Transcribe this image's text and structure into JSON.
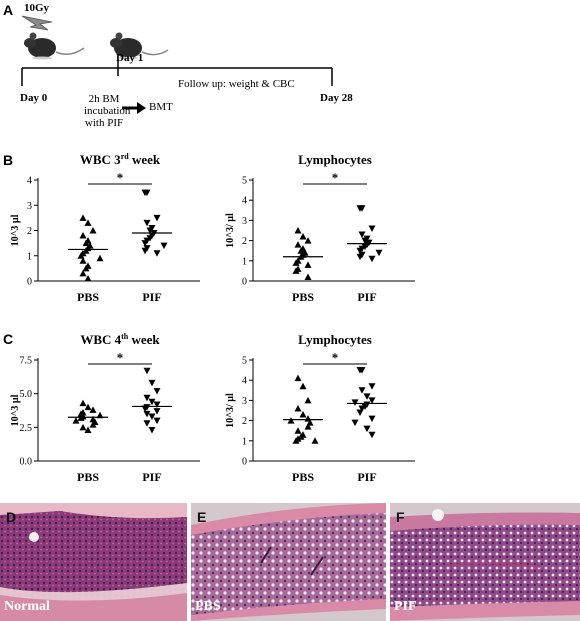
{
  "panels": {
    "A": "A",
    "B": "B",
    "C": "C",
    "D": "D",
    "E": "E",
    "F": "F"
  },
  "timeline": {
    "dose": "10Gy",
    "day0": "Day 0",
    "day1": "Day 1",
    "day28": "Day 28",
    "followup": "Follow up:  weight & CBC",
    "incubation_line1": "2h BM",
    "incubation_line2": "incubation",
    "incubation_line3": "with PIF",
    "bmt": "BMT"
  },
  "histology": {
    "normal": "Normal",
    "pbs": "PBS",
    "pif": "PIF"
  },
  "chart_data": [
    {
      "id": "B-left",
      "type": "scatter",
      "title": "WBC 3rd week",
      "ylabel": "10^3 µl",
      "categories": [
        "PBS",
        "PIF"
      ],
      "ylim": [
        0,
        4
      ],
      "yticks": [
        "0",
        "1",
        "2",
        "3",
        "4"
      ],
      "significance": "*",
      "series": [
        {
          "values": [
            2.5,
            2.3,
            2.0,
            1.8,
            1.6,
            1.5,
            1.4,
            1.3,
            1.2,
            1.1,
            1.0,
            0.9,
            0.8,
            0.6,
            0.5,
            0.3,
            0.1
          ],
          "mean": 1.25
        },
        {
          "values": [
            3.5,
            3.5,
            2.5,
            2.3,
            2.1,
            2.0,
            1.9,
            1.8,
            1.7,
            1.6,
            1.5,
            1.4,
            1.3,
            1.2,
            1.1
          ],
          "mean": 1.9
        }
      ]
    },
    {
      "id": "B-right",
      "type": "scatter",
      "title": "Lymphocytes",
      "ylabel": "10^3/ µl",
      "categories": [
        "PBS",
        "PIF"
      ],
      "ylim": [
        0,
        5
      ],
      "yticks": [
        "0",
        "1",
        "2",
        "3",
        "4",
        "5"
      ],
      "significance": "*",
      "series": [
        {
          "values": [
            2.5,
            2.2,
            2.0,
            1.8,
            1.6,
            1.5,
            1.4,
            1.3,
            1.2,
            1.0,
            0.9,
            0.8,
            0.6,
            0.5,
            0.2
          ],
          "mean": 1.2
        },
        {
          "values": [
            3.6,
            3.6,
            2.6,
            2.3,
            2.1,
            2.0,
            1.9,
            1.8,
            1.7,
            1.6,
            1.5,
            1.4,
            1.3,
            1.2,
            1.1
          ],
          "mean": 1.85
        }
      ]
    },
    {
      "id": "C-left",
      "type": "scatter",
      "title": "WBC 4th week",
      "ylabel": "10^3 µl",
      "categories": [
        "PBS",
        "PIF"
      ],
      "ylim": [
        0,
        7.5
      ],
      "yticks": [
        "0.0",
        "2.5",
        "5.0",
        "7.5"
      ],
      "significance": "*",
      "series": [
        {
          "values": [
            4.3,
            4.0,
            3.8,
            3.6,
            3.5,
            3.4,
            3.3,
            3.2,
            3.1,
            3.0,
            2.9,
            2.7,
            2.5,
            2.3
          ],
          "mean": 3.25
        },
        {
          "values": [
            6.7,
            5.8,
            5.2,
            4.7,
            4.4,
            4.2,
            4.0,
            3.9,
            3.7,
            3.5,
            3.3,
            3.0,
            2.8,
            2.3
          ],
          "mean": 4.05
        }
      ]
    },
    {
      "id": "C-right",
      "type": "scatter",
      "title": "Lymphocytes",
      "ylabel": "10^3/ µl",
      "categories": [
        "PBS",
        "PIF"
      ],
      "ylim": [
        0,
        5
      ],
      "yticks": [
        "0",
        "1",
        "2",
        "3",
        "4",
        "5"
      ],
      "significance": "*",
      "series": [
        {
          "values": [
            4.1,
            3.7,
            3.0,
            2.6,
            2.3,
            2.1,
            2.0,
            1.9,
            1.7,
            1.5,
            1.3,
            1.2,
            1.1,
            1.0,
            1.0
          ],
          "mean": 2.05
        },
        {
          "values": [
            4.5,
            4.5,
            3.7,
            3.5,
            3.2,
            3.0,
            2.9,
            2.8,
            2.7,
            2.6,
            2.4,
            2.1,
            1.9,
            1.6,
            1.3
          ],
          "mean": 2.85
        }
      ]
    }
  ]
}
